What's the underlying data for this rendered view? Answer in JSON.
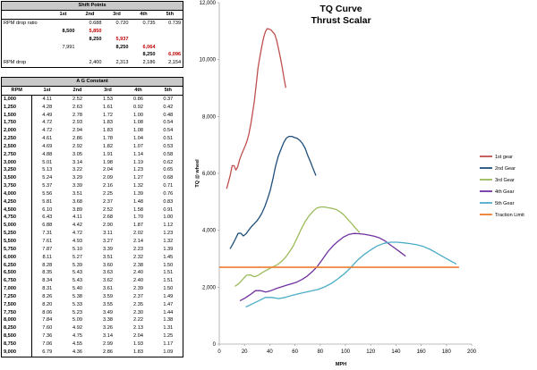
{
  "shift_points": {
    "title": "Shift Points",
    "headers": [
      "",
      "1st",
      "2nd",
      "3rd",
      "4th",
      "5th"
    ],
    "rows": [
      [
        {
          "v": "RPM drop ratio",
          "c": "lbl"
        },
        {
          "v": "",
          "c": ""
        },
        {
          "v": "0.688",
          "c": ""
        },
        {
          "v": "0.720",
          "c": ""
        },
        {
          "v": "0.735",
          "c": ""
        },
        {
          "v": "0.739",
          "c": ""
        }
      ],
      [
        {
          "v": "",
          "c": ""
        },
        {
          "v": "8,500",
          "c": "b"
        },
        {
          "v": "5,850",
          "c": "r"
        },
        {
          "v": "",
          "c": ""
        },
        {
          "v": "",
          "c": ""
        },
        {
          "v": "",
          "c": ""
        }
      ],
      [
        {
          "v": "",
          "c": ""
        },
        {
          "v": "",
          "c": ""
        },
        {
          "v": "8,250",
          "c": "b"
        },
        {
          "v": "5,937",
          "c": "r"
        },
        {
          "v": "",
          "c": ""
        },
        {
          "v": "",
          "c": ""
        }
      ],
      [
        {
          "v": "",
          "c": ""
        },
        {
          "v": "7,991",
          "c": ""
        },
        {
          "v": "",
          "c": ""
        },
        {
          "v": "8,250",
          "c": "b"
        },
        {
          "v": "6,064",
          "c": "r"
        },
        {
          "v": "",
          "c": ""
        }
      ],
      [
        {
          "v": "",
          "c": ""
        },
        {
          "v": "",
          "c": ""
        },
        {
          "v": "",
          "c": ""
        },
        {
          "v": "",
          "c": ""
        },
        {
          "v": "8,250",
          "c": "b"
        },
        {
          "v": "6,096",
          "c": "r"
        }
      ],
      [
        {
          "v": "RPM drop",
          "c": "lbl"
        },
        {
          "v": "",
          "c": ""
        },
        {
          "v": "2,400",
          "c": ""
        },
        {
          "v": "2,313",
          "c": ""
        },
        {
          "v": "2,186",
          "c": ""
        },
        {
          "v": "2,154",
          "c": ""
        }
      ]
    ]
  },
  "ag_constant": {
    "title": "A G Constant",
    "headers": [
      "RPM",
      "1st",
      "2nd",
      "3rd",
      "4th",
      "5th"
    ],
    "rows": [
      [
        "1,000",
        "4.11",
        "2.52",
        "1.53",
        "0.86",
        "0.37"
      ],
      [
        "1,250",
        "4.28",
        "2.63",
        "1.61",
        "0.92",
        "0.42"
      ],
      [
        "1,500",
        "4.49",
        "2.78",
        "1.72",
        "1.00",
        "0.48"
      ],
      [
        "1,750",
        "4.72",
        "2.93",
        "1.83",
        "1.08",
        "0.54"
      ],
      [
        "2,000",
        "4.72",
        "2.94",
        "1.83",
        "1.08",
        "0.54"
      ],
      [
        "2,250",
        "4.61",
        "2.86",
        "1.78",
        "1.04",
        "0.51"
      ],
      [
        "2,500",
        "4.69",
        "2.92",
        "1.82",
        "1.07",
        "0.53"
      ],
      [
        "2,750",
        "4.88",
        "3.05",
        "1.91",
        "1.14",
        "0.58"
      ],
      [
        "3,000",
        "5.01",
        "3.14",
        "1.98",
        "1.19",
        "0.62"
      ],
      [
        "3,250",
        "5.13",
        "3.22",
        "2.04",
        "1.23",
        "0.65"
      ],
      [
        "3,500",
        "5.24",
        "3.29",
        "2.09",
        "1.27",
        "0.68"
      ],
      [
        "3,750",
        "5.37",
        "3.39",
        "2.16",
        "1.32",
        "0.71"
      ],
      [
        "4,000",
        "5.56",
        "3.51",
        "2.25",
        "1.39",
        "0.76"
      ],
      [
        "4,250",
        "5.81",
        "3.68",
        "2.37",
        "1.48",
        "0.83"
      ],
      [
        "4,500",
        "6.10",
        "3.89",
        "2.52",
        "1.58",
        "0.91"
      ],
      [
        "4,750",
        "6.43",
        "4.11",
        "2.68",
        "1.70",
        "1.00"
      ],
      [
        "5,000",
        "6.88",
        "4.42",
        "2.90",
        "1.87",
        "1.12"
      ],
      [
        "5,250",
        "7.31",
        "4.72",
        "3.11",
        "2.02",
        "1.23"
      ],
      [
        "5,500",
        "7.61",
        "4.93",
        "3.27",
        "2.14",
        "1.32"
      ],
      [
        "5,750",
        "7.87",
        "5.10",
        "3.39",
        "2.23",
        "1.39"
      ],
      [
        "6,000",
        "8.11",
        "5.27",
        "3.51",
        "2.32",
        "1.45"
      ],
      [
        "6,250",
        "8.28",
        "5.39",
        "3.60",
        "2.38",
        "1.50"
      ],
      [
        "6,500",
        "8.35",
        "5.43",
        "3.63",
        "2.40",
        "1.51"
      ],
      [
        "6,750",
        "8.34",
        "5.43",
        "3.62",
        "2.40",
        "1.51"
      ],
      [
        "7,000",
        "8.31",
        "5.40",
        "3.61",
        "2.39",
        "1.50"
      ],
      [
        "7,250",
        "8.26",
        "5.38",
        "3.59",
        "2.37",
        "1.49"
      ],
      [
        "7,500",
        "8.20",
        "5.33",
        "3.55",
        "2.35",
        "1.47"
      ],
      [
        "7,750",
        "8.06",
        "5.23",
        "3.49",
        "2.30",
        "1.44"
      ],
      [
        "8,000",
        "7.84",
        "5.09",
        "3.38",
        "2.22",
        "1.38"
      ],
      [
        "8,250",
        "7.60",
        "4.92",
        "3.26",
        "2.13",
        "1.31"
      ],
      [
        "8,500",
        "7.36",
        "4.75",
        "3.14",
        "2.04",
        "1.25"
      ],
      [
        "8,750",
        "7.06",
        "4.55",
        "2.99",
        "1.93",
        "1.17"
      ],
      [
        "9,000",
        "6.79",
        "4.36",
        "2.86",
        "1.83",
        "1.09"
      ]
    ]
  },
  "chart_data": {
    "type": "line",
    "title": "TQ Curve",
    "subtitle": "Thrust Scalar",
    "xlabel": "MPH",
    "ylabel": "TQ @ wheel",
    "xlim": [
      0,
      200
    ],
    "ylim": [
      0,
      12000
    ],
    "xticks": [
      0,
      20,
      40,
      60,
      80,
      100,
      120,
      140,
      160,
      180,
      200
    ],
    "yticks": [
      0,
      2000,
      4000,
      6000,
      8000,
      10000,
      12000
    ],
    "ytick_labels": [
      "0",
      "2,000",
      "4,000",
      "6,000",
      "8,000",
      "10,000",
      "12,000"
    ],
    "legend_position": "right",
    "series": [
      {
        "name": "1st gear",
        "color": "#c0504d",
        "x": [
          5.8,
          7.3,
          8.8,
          10.2,
          11.7,
          13.2,
          14.6,
          16.1,
          17.5,
          19.0,
          20.5,
          21.9,
          23.4,
          24.9,
          26.3,
          27.8,
          29.3,
          30.7,
          32.2,
          33.6,
          35.1,
          36.6,
          38.0,
          39.5,
          41.0,
          42.4,
          43.9,
          45.3,
          46.8,
          48.3,
          49.7,
          51.2,
          52.7
        ],
        "y": [
          5460,
          5700,
          5960,
          6270,
          6270,
          6120,
          6230,
          6480,
          6650,
          6810,
          6960,
          7130,
          7370,
          7710,
          8100,
          8540,
          9130,
          9710,
          10100,
          10450,
          10770,
          10990,
          11090,
          11070,
          11040,
          10970,
          10890,
          10700,
          10410,
          10090,
          9770,
          9370,
          9010
        ]
      },
      {
        "name": "2nd Gear",
        "color": "#1f4e79",
        "x": [
          8.5,
          10.6,
          12.8,
          14.9,
          17.0,
          19.1,
          21.3,
          23.4,
          25.5,
          27.7,
          29.8,
          31.9,
          34.0,
          36.2,
          38.3,
          40.4,
          42.6,
          44.7,
          46.8,
          49.0,
          51.1,
          53.2,
          55.3,
          57.5,
          59.6,
          61.7,
          63.9,
          66.0,
          68.1,
          70.2,
          72.4,
          74.5,
          76.6
        ],
        "y": [
          3350,
          3500,
          3690,
          3890,
          3900,
          3800,
          3880,
          4010,
          4130,
          4230,
          4330,
          4460,
          4620,
          4840,
          5110,
          5410,
          5830,
          6270,
          6610,
          6860,
          7090,
          7240,
          7300,
          7300,
          7260,
          7230,
          7160,
          7040,
          6880,
          6620,
          6390,
          6150,
          5920
        ]
      },
      {
        "name": "3rd Gear",
        "color": "#9bbb59",
        "x": [
          12.4,
          15.5,
          18.5,
          21.6,
          24.7,
          27.8,
          30.9,
          34.0,
          37.1,
          40.1,
          43.2,
          46.3,
          49.4,
          52.5,
          55.6,
          58.7,
          61.8,
          64.9,
          67.9,
          71.0,
          74.1,
          77.2,
          80.3,
          83.4,
          86.5,
          89.6,
          92.6,
          95.7,
          98.8,
          101.9,
          105.0,
          108.1,
          111.2
        ],
        "y": [
          2030,
          2130,
          2270,
          2420,
          2430,
          2370,
          2420,
          2510,
          2590,
          2660,
          2730,
          2800,
          2910,
          3050,
          3240,
          3460,
          3740,
          4040,
          4290,
          4500,
          4660,
          4780,
          4820,
          4820,
          4790,
          4770,
          4730,
          4650,
          4540,
          4380,
          4230,
          4070,
          3920
        ]
      },
      {
        "name": "4th Gear",
        "color": "#7030a0",
        "x": [
          16.4,
          20.5,
          24.6,
          28.7,
          32.8,
          36.9,
          41.0,
          45.1,
          49.2,
          53.3,
          57.4,
          61.5,
          65.6,
          69.7,
          73.8,
          77.9,
          82.0,
          86.1,
          90.2,
          94.3,
          98.4,
          102.5,
          106.6,
          110.7,
          114.8,
          118.9,
          123.0,
          127.1,
          131.2,
          135.3,
          139.4,
          143.5,
          147.6
        ],
        "y": [
          1520,
          1620,
          1740,
          1880,
          1880,
          1830,
          1880,
          1950,
          2010,
          2070,
          2120,
          2180,
          2270,
          2390,
          2550,
          2740,
          2990,
          3250,
          3460,
          3620,
          3760,
          3850,
          3890,
          3880,
          3860,
          3830,
          3790,
          3730,
          3630,
          3490,
          3360,
          3230,
          3090
        ]
      },
      {
        "name": "5th Gear",
        "color": "#4bacc6",
        "x": [
          20.9,
          26.1,
          31.3,
          36.5,
          41.7,
          47.0,
          52.2,
          57.4,
          62.6,
          67.8,
          73.0,
          78.3,
          83.5,
          88.7,
          93.9,
          99.1,
          104.4,
          109.6,
          114.8,
          120.0,
          125.2,
          130.4,
          135.7,
          140.9,
          146.1,
          151.3,
          156.5,
          161.7,
          167.0,
          172.2,
          177.4,
          182.6,
          187.8
        ],
        "y": [
          1300,
          1410,
          1520,
          1640,
          1640,
          1600,
          1640,
          1710,
          1770,
          1820,
          1870,
          1920,
          2010,
          2130,
          2290,
          2470,
          2700,
          2950,
          3150,
          3310,
          3450,
          3540,
          3580,
          3580,
          3560,
          3530,
          3490,
          3430,
          3330,
          3200,
          3070,
          2940,
          2810
        ]
      },
      {
        "name": "Traction Limit",
        "color": "#ed7d31",
        "x": [
          0,
          190
        ],
        "y": [
          2700,
          2700
        ]
      }
    ]
  }
}
